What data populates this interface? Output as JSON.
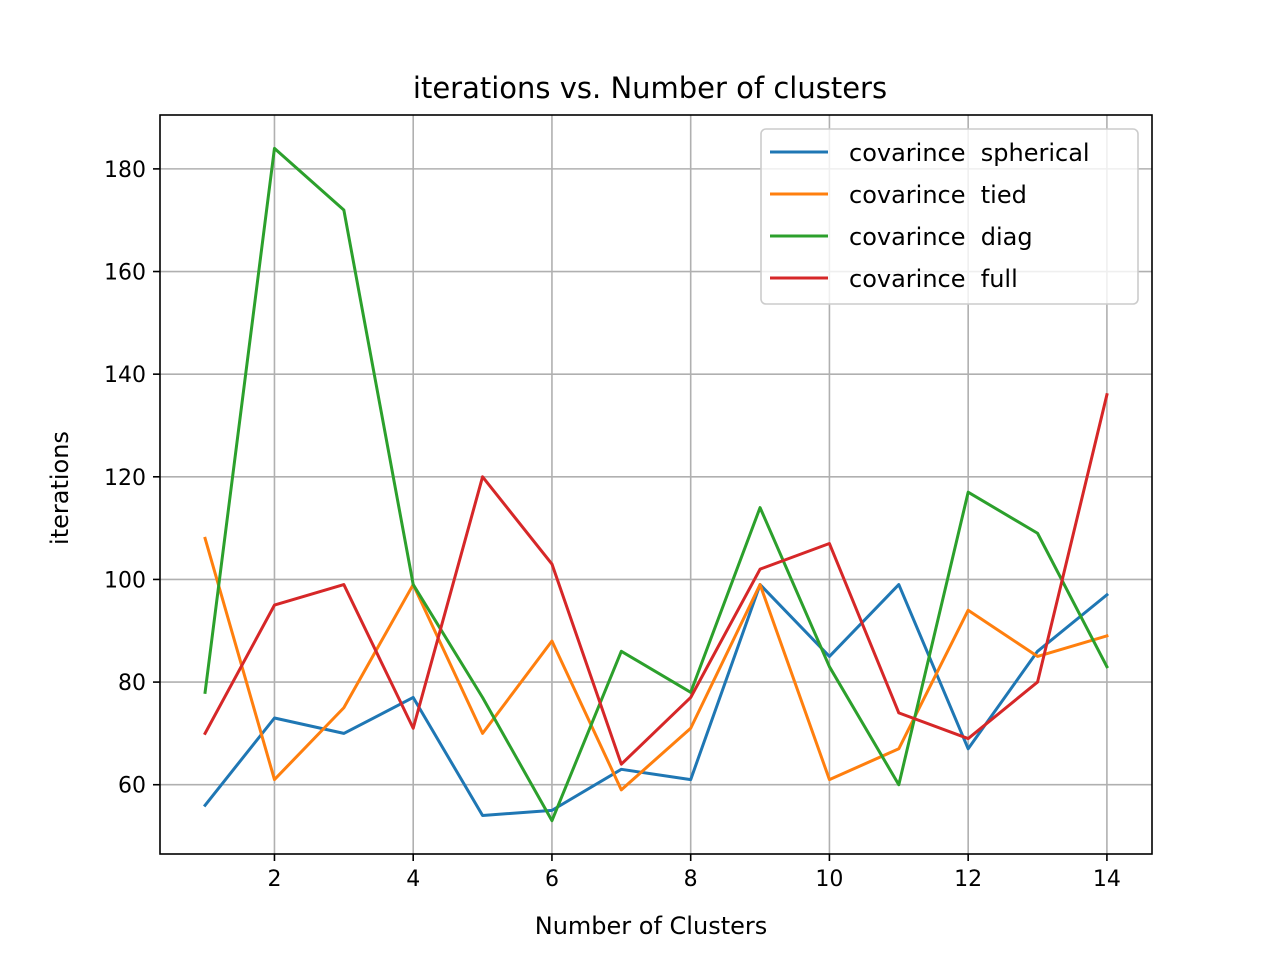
{
  "chart_data": {
    "type": "line",
    "title": "iterations  vs. Number of clusters",
    "xlabel": "Number of Clusters",
    "ylabel": "iterations",
    "x": [
      1,
      2,
      3,
      4,
      5,
      6,
      7,
      8,
      9,
      10,
      11,
      12,
      13,
      14
    ],
    "xlim": [
      0.35,
      14.65
    ],
    "ylim": [
      46.5,
      190.5
    ],
    "xticks": [
      2,
      4,
      6,
      8,
      10,
      12,
      14
    ],
    "yticks": [
      60,
      80,
      100,
      120,
      140,
      160,
      180
    ],
    "grid": true,
    "legend_position": "top-right",
    "series": [
      {
        "name": "covarince  spherical",
        "color": "#1f77b4",
        "values": [
          56,
          73,
          70,
          77,
          54,
          55,
          63,
          61,
          99,
          85,
          99,
          67,
          86,
          97
        ]
      },
      {
        "name": "covarince  tied",
        "color": "#ff7f0e",
        "values": [
          108,
          61,
          75,
          99,
          70,
          88,
          59,
          71,
          99,
          61,
          67,
          94,
          85,
          89
        ]
      },
      {
        "name": "covarince  diag",
        "color": "#2ca02c",
        "values": [
          78,
          184,
          172,
          99,
          77,
          53,
          86,
          78,
          114,
          83,
          60,
          117,
          109,
          83
        ]
      },
      {
        "name": "covarince  full",
        "color": "#d62728",
        "values": [
          70,
          95,
          99,
          71,
          120,
          103,
          64,
          77,
          102,
          107,
          74,
          69,
          80,
          136
        ]
      }
    ]
  }
}
